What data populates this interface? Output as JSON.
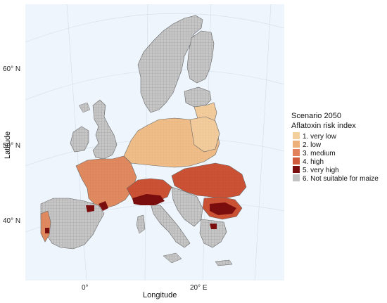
{
  "map": {
    "xlabel": "Longitude",
    "ylabel": "Latitude",
    "lon_ticks": [
      "0°",
      "20° E"
    ],
    "lat_ticks": [
      "60° N",
      "50° N",
      "40° N"
    ],
    "background": "#eef5fc",
    "graticule_color": "#d3dde8"
  },
  "legend": {
    "title_line1": "Scenario 2050",
    "title_line2": "Aflatoxin risk index",
    "placement": "right",
    "items": [
      {
        "label": "1. very low",
        "color": "#f3cf9e"
      },
      {
        "label": "2. low",
        "color": "#eeb07a"
      },
      {
        "label": "3. medium",
        "color": "#e3825a"
      },
      {
        "label": "4. high",
        "color": "#cf5a3c"
      },
      {
        "label": "5. very high",
        "color": "#7a0d0d"
      },
      {
        "label": "6. Not suitable for maize",
        "color": "#c2c2c2"
      }
    ]
  }
}
